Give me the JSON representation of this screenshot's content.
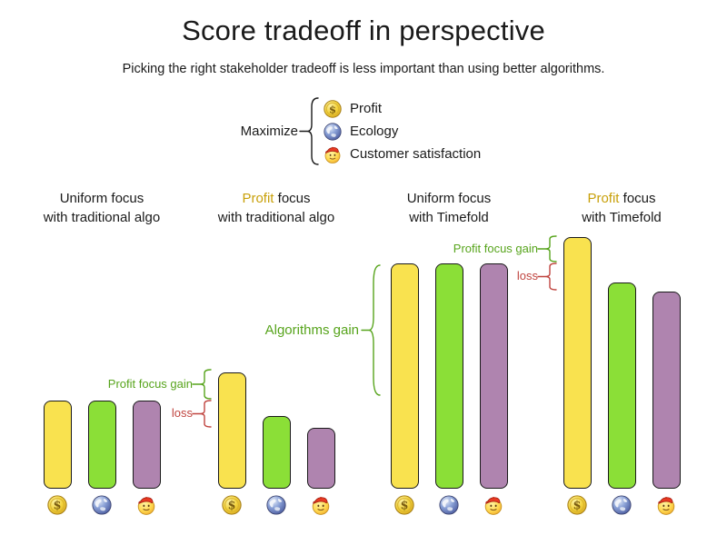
{
  "title": "Score tradeoff in perspective",
  "subtitle": "Picking the right stakeholder tradeoff is less important than using better algorithms.",
  "legend": {
    "label": "Maximize",
    "items": [
      {
        "icon": "coin-icon",
        "label": "Profit"
      },
      {
        "icon": "globe-icon",
        "label": "Ecology"
      },
      {
        "icon": "smiley-icon",
        "label": "Customer satisfaction"
      }
    ]
  },
  "colors": {
    "bar_profit": "#F9E24F",
    "bar_ecology": "#8BDF37",
    "bar_customer": "#AF84AF",
    "bar_border": "#1A1A1A",
    "gain_green": "#57A41C",
    "loss_red": "#C04540",
    "profit_gold": "#C8A00A",
    "text": "#1A1A1A"
  },
  "chart_data": {
    "type": "bar",
    "title": "Score tradeoff in perspective",
    "subtitle": "Picking the right stakeholder tradeoff is less important than using better algorithms.",
    "unit": "relative score (no numeric axis shown; values are bar heights in pixels)",
    "axes": "none",
    "grid": "off",
    "legend_position": "top-center",
    "series_names": [
      "Profit",
      "Ecology",
      "Customer satisfaction"
    ],
    "series_icons": [
      "coin-icon",
      "globe-icon",
      "smiley-icon"
    ],
    "groups": [
      {
        "focus_word": "Uniform",
        "label_rest": " focus",
        "line2": "with traditional algo",
        "profit_highlight": false,
        "values": [
          97,
          97,
          97
        ]
      },
      {
        "focus_word": "Profit",
        "label_rest": " focus",
        "line2": "with traditional algo",
        "profit_highlight": true,
        "values": [
          128,
          80,
          67
        ]
      },
      {
        "focus_word": "Uniform",
        "label_rest": " focus",
        "line2": "with Timefold",
        "profit_highlight": false,
        "values": [
          248,
          248,
          248
        ]
      },
      {
        "focus_word": "Profit",
        "label_rest": " focus",
        "line2": "with Timefold",
        "profit_highlight": true,
        "values": [
          277,
          227,
          217
        ]
      }
    ],
    "annotations": [
      {
        "text": "Profit focus gain",
        "color": "gain_green",
        "applies_to": "Profit focus with traditional algo"
      },
      {
        "text": "loss",
        "color": "loss_red",
        "applies_to": "Profit focus with traditional algo"
      },
      {
        "text": "Algorithms gain",
        "color": "gain_green",
        "applies_to": "Uniform focus with Timefold"
      },
      {
        "text": "Profit focus gain",
        "color": "gain_green",
        "applies_to": "Profit focus with Timefold"
      },
      {
        "text": "loss",
        "color": "loss_red",
        "applies_to": "Profit focus with Timefold"
      }
    ]
  }
}
